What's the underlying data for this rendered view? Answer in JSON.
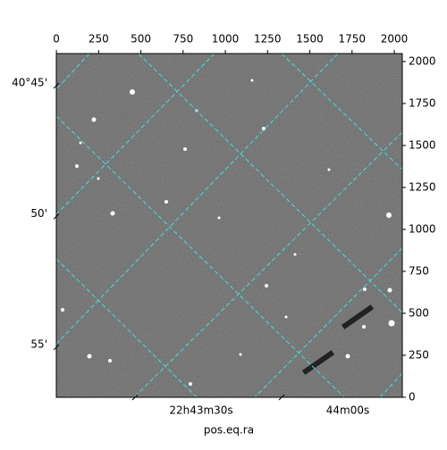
{
  "chart_data": {
    "type": "image",
    "xlabel": "pos.eq.ra",
    "xlim": [
      -0.5,
      2047.5
    ],
    "xticks": [
      0,
      250,
      500,
      750,
      1000,
      1250,
      1500,
      1750,
      2000
    ],
    "ylim": [
      -0.5,
      2047.5
    ],
    "yticks": [
      0,
      250,
      500,
      750,
      1000,
      1250,
      1500,
      1750,
      2000
    ],
    "dec_lim": [
      40.7295,
      40.9486
    ],
    "dec_ticks": [
      {
        "value": 40.75,
        "label": "40°45'"
      },
      {
        "value": 40.8333,
        "label": "50'"
      },
      {
        "value": 40.9167,
        "label": "55'"
      }
    ],
    "ra_lim": [
      340.7515,
      341.0465
    ],
    "ra_ticks": [
      {
        "value": 340.875,
        "label": "22h43m30s"
      },
      {
        "value": 341.0,
        "label": "44m00s"
      }
    ],
    "grid_color": "#40e0e0"
  }
}
